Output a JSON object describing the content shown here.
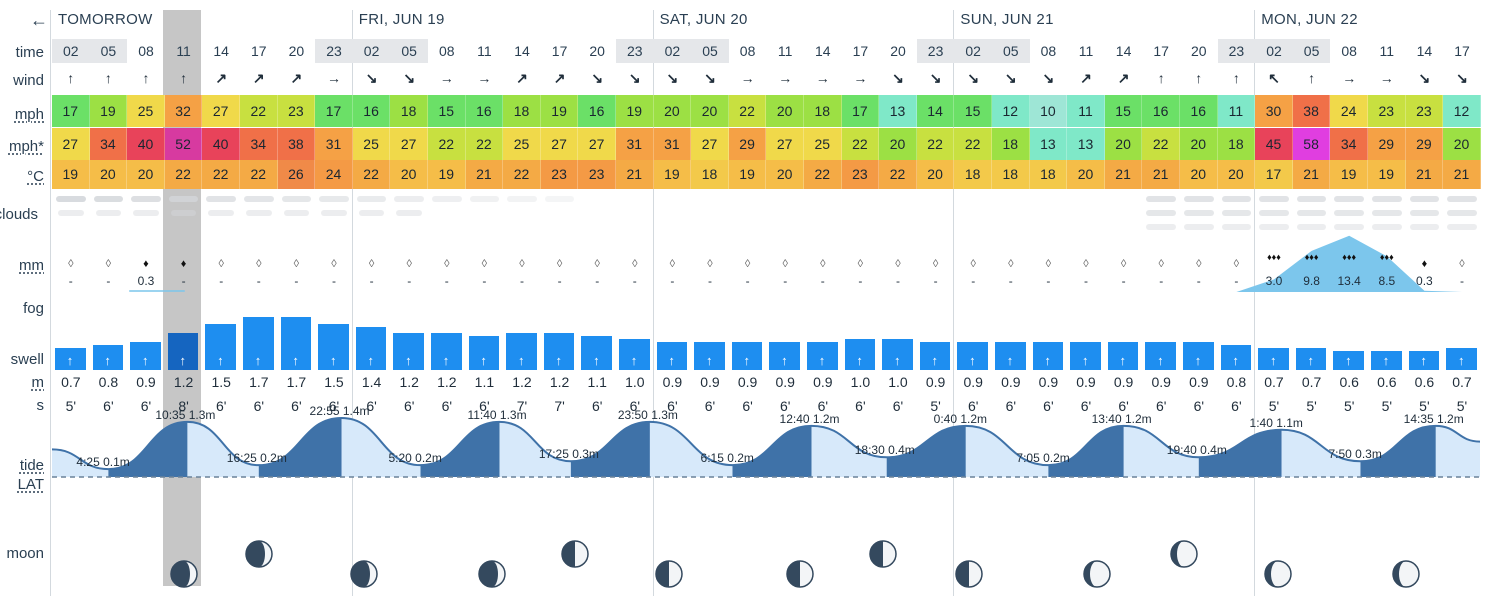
{
  "nav": {
    "back_label": "←"
  },
  "row_labels": {
    "time": "time",
    "wind": "wind",
    "mph": "mph",
    "mph_gust": "mph*",
    "temp": "°C",
    "clouds": "clouds",
    "mm": "mm",
    "fog": "fog",
    "swell": "swell",
    "m": "m",
    "s": "s",
    "tide": "tide",
    "lat": "LAT",
    "moon": "moon"
  },
  "days": [
    {
      "label": "TOMORROW",
      "start": 0
    },
    {
      "label": "FRI, JUN 19",
      "start": 8
    },
    {
      "label": "SAT, JUN 20",
      "start": 16
    },
    {
      "label": "SUN, JUN 21",
      "start": 24
    },
    {
      "label": "MON, JUN 22",
      "start": 32
    }
  ],
  "highlight_index": 3,
  "times": [
    "02",
    "05",
    "08",
    "11",
    "14",
    "17",
    "20",
    "23",
    "02",
    "05",
    "08",
    "11",
    "14",
    "17",
    "20",
    "23",
    "02",
    "05",
    "08",
    "11",
    "14",
    "17",
    "20",
    "23",
    "02",
    "05",
    "08",
    "11",
    "14",
    "17",
    "20",
    "23",
    "02",
    "05",
    "08",
    "11",
    "14",
    "17"
  ],
  "night_indices": [
    0,
    1,
    7,
    8,
    9,
    15,
    16,
    17,
    23,
    24,
    25,
    31,
    32,
    33
  ],
  "wind_dirs": [
    "↑",
    "↑",
    "↑",
    "↑",
    "↗",
    "↗",
    "↗",
    "→",
    "↘",
    "↘",
    "→",
    "→",
    "↗",
    "↗",
    "↘",
    "↘",
    "↘",
    "↘",
    "→",
    "→",
    "→",
    "→",
    "↘",
    "↘",
    "↘",
    "↘",
    "↘",
    "↗",
    "↗",
    "↑",
    "↑",
    "↑",
    "↖",
    "↑",
    "→",
    "→",
    "↘",
    "↘"
  ],
  "wind_mph": [
    "17",
    "19",
    "25",
    "32",
    "27",
    "22",
    "23",
    "17",
    "16",
    "18",
    "15",
    "16",
    "18",
    "19",
    "16",
    "19",
    "20",
    "20",
    "22",
    "20",
    "18",
    "17",
    "13",
    "14",
    "15",
    "12",
    "10",
    "11",
    "15",
    "16",
    "16",
    "11",
    "30",
    "38",
    "24",
    "23",
    "23",
    "12"
  ],
  "gust_mph": [
    "27",
    "34",
    "40",
    "52",
    "40",
    "34",
    "38",
    "31",
    "25",
    "27",
    "22",
    "22",
    "25",
    "27",
    "27",
    "31",
    "31",
    "27",
    "29",
    "27",
    "25",
    "22",
    "20",
    "22",
    "22",
    "18",
    "13",
    "13",
    "20",
    "22",
    "20",
    "18",
    "45",
    "58",
    "34",
    "29",
    "29",
    "20"
  ],
  "temp_c": [
    "19",
    "20",
    "20",
    "22",
    "22",
    "22",
    "26",
    "24",
    "22",
    "20",
    "19",
    "21",
    "22",
    "23",
    "23",
    "21",
    "19",
    "18",
    "19",
    "20",
    "22",
    "23",
    "22",
    "20",
    "18",
    "18",
    "18",
    "20",
    "21",
    "21",
    "20",
    "20",
    "17",
    "21",
    "19",
    "19",
    "21",
    "21"
  ],
  "rain_mm": [
    "-",
    "-",
    "0.3",
    "-",
    "-",
    "-",
    "-",
    "-",
    "-",
    "-",
    "-",
    "-",
    "-",
    "-",
    "-",
    "-",
    "-",
    "-",
    "-",
    "-",
    "-",
    "-",
    "-",
    "-",
    "-",
    "-",
    "-",
    "-",
    "-",
    "-",
    "-",
    "-",
    "3.0",
    "9.8",
    "13.4",
    "8.5",
    "0.3",
    "-"
  ],
  "swell_m": [
    "0.7",
    "0.8",
    "0.9",
    "1.2",
    "1.5",
    "1.7",
    "1.7",
    "1.5",
    "1.4",
    "1.2",
    "1.2",
    "1.1",
    "1.2",
    "1.2",
    "1.1",
    "1.0",
    "0.9",
    "0.9",
    "0.9",
    "0.9",
    "0.9",
    "1.0",
    "1.0",
    "0.9",
    "0.9",
    "0.9",
    "0.9",
    "0.9",
    "0.9",
    "0.9",
    "0.9",
    "0.8",
    "0.7",
    "0.7",
    "0.6",
    "0.6",
    "0.6",
    "0.7"
  ],
  "swell_s": [
    "5'",
    "6'",
    "6'",
    "8'",
    "6'",
    "6'",
    "6'",
    "6'",
    "6'",
    "6'",
    "6'",
    "6'",
    "7'",
    "7'",
    "6'",
    "6'",
    "6'",
    "6'",
    "6'",
    "6'",
    "6'",
    "6'",
    "6'",
    "5'",
    "6'",
    "6'",
    "6'",
    "6'",
    "6'",
    "6'",
    "6'",
    "6'",
    "5'",
    "5'",
    "5'",
    "5'",
    "5'",
    "5'"
  ],
  "tides": [
    {
      "label": "4:25 0.1m",
      "type": "low",
      "idx": 1.0
    },
    {
      "label": "10:35 1.3m",
      "type": "high",
      "idx": 3.1
    },
    {
      "label": "16:25 0.2m",
      "type": "low",
      "idx": 5.0
    },
    {
      "label": "22:55 1.4m",
      "type": "high",
      "idx": 7.2
    },
    {
      "label": "5:20 0.2m",
      "type": "low",
      "idx": 9.3
    },
    {
      "label": "11:40 1.3m",
      "type": "high",
      "idx": 11.4
    },
    {
      "label": "17:25 0.3m",
      "type": "low",
      "idx": 13.3
    },
    {
      "label": "23:50 1.3m",
      "type": "high",
      "idx": 15.4
    },
    {
      "label": "6:15 0.2m",
      "type": "low",
      "idx": 17.6
    },
    {
      "label": "12:40 1.2m",
      "type": "high",
      "idx": 19.7
    },
    {
      "label": "18:30 0.4m",
      "type": "low",
      "idx": 21.7
    },
    {
      "label": "0:40 1.2m",
      "type": "high",
      "idx": 23.8
    },
    {
      "label": "7:05 0.2m",
      "type": "low",
      "idx": 26.0
    },
    {
      "label": "13:40 1.2m",
      "type": "high",
      "idx": 28.0
    },
    {
      "label": "19:40 0.4m",
      "type": "low",
      "idx": 30.0
    },
    {
      "label": "1:40 1.1m",
      "type": "high",
      "idx": 32.2
    },
    {
      "label": "7:50 0.3m",
      "type": "low",
      "idx": 34.3
    },
    {
      "label": "14:35 1.2m",
      "type": "high",
      "idx": 36.3
    }
  ],
  "moons": [
    {
      "idx": 3,
      "row": "low",
      "phase": "waning-gibbous"
    },
    {
      "idx": 5,
      "row": "high",
      "phase": "waning-gibbous"
    },
    {
      "idx": 7.8,
      "row": "low",
      "phase": "waning-gibbous"
    },
    {
      "idx": 11.2,
      "row": "low",
      "phase": "waning-gibbous"
    },
    {
      "idx": 13.4,
      "row": "high",
      "phase": "last-quarter"
    },
    {
      "idx": 15.9,
      "row": "low",
      "phase": "last-quarter"
    },
    {
      "idx": 19.4,
      "row": "low",
      "phase": "last-quarter"
    },
    {
      "idx": 21.6,
      "row": "high",
      "phase": "last-quarter"
    },
    {
      "idx": 23.9,
      "row": "low",
      "phase": "last-quarter"
    },
    {
      "idx": 27.3,
      "row": "low",
      "phase": "waning-crescent"
    },
    {
      "idx": 29.6,
      "row": "high",
      "phase": "waning-crescent"
    },
    {
      "idx": 32.1,
      "row": "low",
      "phase": "waning-crescent"
    },
    {
      "idx": 35.5,
      "row": "low",
      "phase": "waning-crescent"
    }
  ],
  "colors": {
    "swell": "#1e8ef0",
    "swell_highlight": "#1565c0",
    "tide_fill": "#d7e9fa",
    "tide_high": "#3f72a8",
    "rain_fill": "#7cc6ec",
    "night": "#e5e7ea"
  }
}
